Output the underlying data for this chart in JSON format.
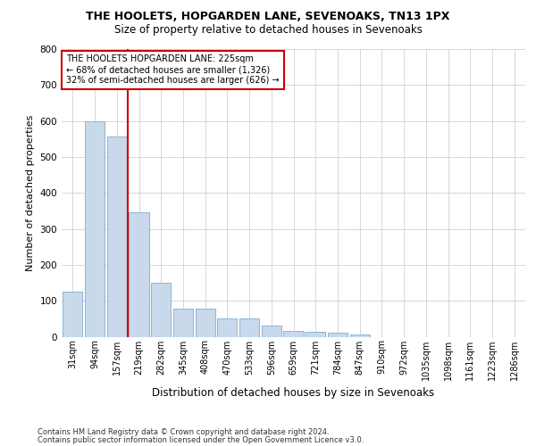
{
  "title1": "THE HOOLETS, HOPGARDEN LANE, SEVENOAKS, TN13 1PX",
  "title2": "Size of property relative to detached houses in Sevenoaks",
  "xlabel": "Distribution of detached houses by size in Sevenoaks",
  "ylabel": "Number of detached properties",
  "categories": [
    "31sqm",
    "94sqm",
    "157sqm",
    "219sqm",
    "282sqm",
    "345sqm",
    "408sqm",
    "470sqm",
    "533sqm",
    "596sqm",
    "659sqm",
    "721sqm",
    "784sqm",
    "847sqm",
    "910sqm",
    "972sqm",
    "1035sqm",
    "1098sqm",
    "1161sqm",
    "1223sqm",
    "1286sqm"
  ],
  "values": [
    125,
    600,
    558,
    347,
    150,
    78,
    78,
    50,
    50,
    30,
    15,
    13,
    12,
    5,
    0,
    0,
    0,
    0,
    0,
    0,
    0
  ],
  "bar_color": "#c9d9ec",
  "bar_edge_color": "#8eb4d0",
  "vline_x_index": 3,
  "vline_color": "#cc0000",
  "annotation_text": "THE HOOLETS HOPGARDEN LANE: 225sqm\n← 68% of detached houses are smaller (1,326)\n32% of semi-detached houses are larger (626) →",
  "annotation_box_color": "#ffffff",
  "annotation_box_edge": "#cc0000",
  "ylim": [
    0,
    800
  ],
  "yticks": [
    0,
    100,
    200,
    300,
    400,
    500,
    600,
    700,
    800
  ],
  "footer1": "Contains HM Land Registry data © Crown copyright and database right 2024.",
  "footer2": "Contains public sector information licensed under the Open Government Licence v3.0.",
  "bg_color": "#ffffff",
  "grid_color": "#d0d0d8",
  "title1_fontsize": 9,
  "title2_fontsize": 8.5,
  "ylabel_fontsize": 8,
  "xlabel_fontsize": 8.5,
  "tick_fontsize": 7,
  "footer_fontsize": 6,
  "annot_fontsize": 7
}
